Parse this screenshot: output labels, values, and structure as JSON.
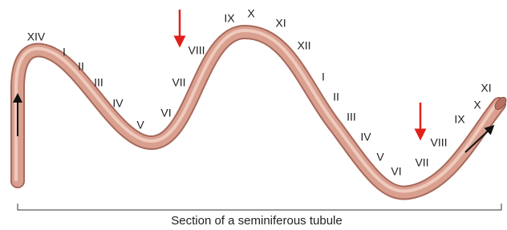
{
  "labels": [
    "XIV",
    "I",
    "II",
    "III",
    "IV",
    "V",
    "VI",
    "VII",
    "VIII",
    "IX",
    "X",
    "XI",
    "XII",
    "I",
    "II",
    "III",
    "IV",
    "V",
    "VI",
    "VII",
    "VIII",
    "IX",
    "X",
    "XI"
  ],
  "caption": "Section of a seminiferous tubule"
}
